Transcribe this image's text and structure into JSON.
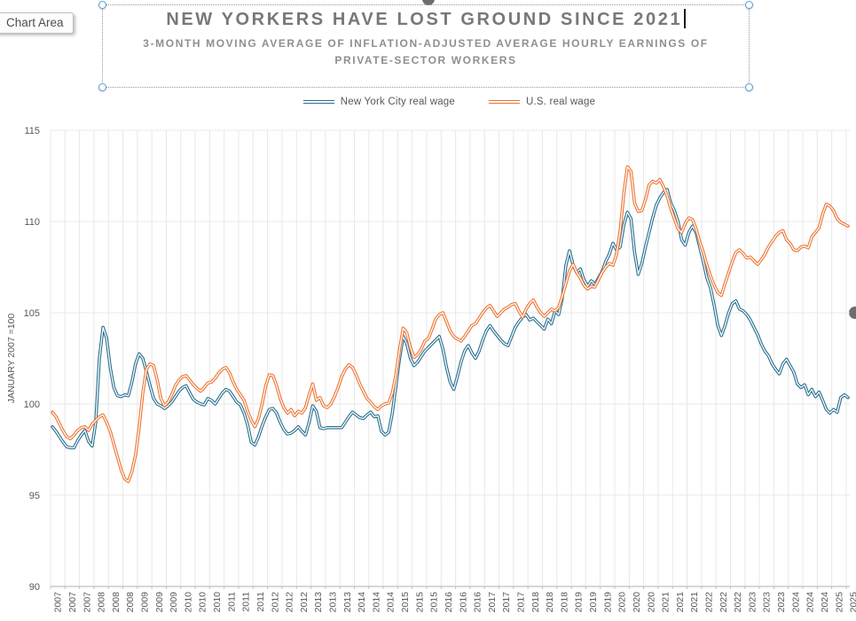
{
  "tooltip": {
    "label": "Chart Area"
  },
  "header": {
    "title": "NEW YORKERS HAVE LOST GROUND SINCE 2021",
    "subtitle": "3-MONTH MOVING AVERAGE OF INFLATION-ADJUSTED AVERAGE HOURLY EARNINGS OF PRIVATE-SECTOR WORKERS"
  },
  "legend": {
    "items": [
      {
        "label": "New York City real wage",
        "color": "#276E8F"
      },
      {
        "label": "U.S. real wage",
        "color": "#ED7330"
      }
    ]
  },
  "y_axis": {
    "title": "JANUARY 2007 =100",
    "ticks": [
      90,
      95,
      100,
      105,
      110,
      115
    ],
    "min": 90,
    "max": 115
  },
  "x_axis": {
    "months_per_tick": 4,
    "tick_labels": [
      "2007",
      "2007",
      "2007",
      "2008",
      "2008",
      "2008",
      "2009",
      "2009",
      "2009",
      "2010",
      "2010",
      "2010",
      "2011",
      "2011",
      "2011",
      "2012",
      "2012",
      "2012",
      "2013",
      "2013",
      "2013",
      "2014",
      "2014",
      "2014",
      "2015",
      "2015",
      "2015",
      "2016",
      "2016",
      "2016",
      "2017",
      "2017",
      "2017",
      "2018",
      "2018",
      "2018",
      "2019",
      "2019",
      "2019",
      "2020",
      "2020",
      "2020",
      "2021",
      "2021",
      "2021",
      "2022",
      "2022",
      "2022",
      "2023",
      "2023",
      "2023",
      "2024",
      "2024",
      "2024",
      "2025",
      "2025"
    ]
  },
  "chart_data": {
    "type": "line",
    "title": "NEW YORKERS HAVE LOST GROUND SINCE 2021",
    "x_description": "Monthly, Jan 2007 - May 2025 (index 0-220)",
    "n_points": 221,
    "ylim": [
      90,
      115
    ],
    "grid": true,
    "legend_position": "top-center",
    "series": [
      {
        "name": "New York City real wage",
        "color": "#276E8F",
        "values": [
          98.75,
          98.5,
          98.2,
          97.9,
          97.65,
          97.6,
          97.6,
          98.0,
          98.3,
          98.55,
          97.95,
          97.7,
          99.0,
          102.5,
          104.2,
          103.6,
          102.0,
          100.9,
          100.45,
          100.4,
          100.5,
          100.45,
          101.2,
          102.2,
          102.75,
          102.5,
          101.8,
          101.0,
          100.3,
          100.0,
          99.9,
          99.75,
          99.9,
          100.1,
          100.4,
          100.7,
          100.9,
          101.0,
          100.6,
          100.25,
          100.1,
          100.0,
          99.95,
          100.3,
          100.2,
          100.0,
          100.3,
          100.6,
          100.8,
          100.7,
          100.4,
          100.1,
          99.95,
          99.5,
          98.85,
          97.9,
          97.75,
          98.2,
          98.8,
          99.3,
          99.7,
          99.75,
          99.5,
          99.0,
          98.6,
          98.35,
          98.4,
          98.55,
          98.75,
          98.5,
          98.3,
          99.0,
          99.9,
          99.6,
          98.7,
          98.65,
          98.7,
          98.7,
          98.7,
          98.7,
          98.7,
          99.0,
          99.3,
          99.55,
          99.4,
          99.25,
          99.2,
          99.4,
          99.55,
          99.3,
          99.35,
          98.5,
          98.3,
          98.45,
          99.5,
          101.0,
          102.5,
          103.7,
          103.3,
          102.5,
          102.1,
          102.3,
          102.6,
          102.9,
          103.1,
          103.3,
          103.5,
          103.7,
          103.0,
          102.0,
          101.2,
          100.8,
          101.5,
          102.3,
          102.9,
          103.2,
          102.8,
          102.5,
          102.9,
          103.5,
          104.0,
          104.3,
          104.0,
          103.75,
          103.5,
          103.3,
          103.2,
          103.7,
          104.2,
          104.5,
          104.75,
          104.9,
          104.6,
          104.7,
          104.5,
          104.3,
          104.1,
          104.65,
          104.4,
          105.1,
          104.9,
          105.8,
          107.6,
          108.4,
          107.6,
          107.2,
          107.4,
          106.8,
          106.45,
          106.75,
          106.55,
          106.9,
          107.25,
          107.8,
          108.2,
          108.8,
          108.45,
          108.6,
          109.8,
          110.5,
          110.15,
          108.3,
          107.1,
          107.7,
          108.6,
          109.4,
          110.2,
          110.9,
          111.3,
          111.6,
          111.75,
          111.0,
          110.6,
          110.0,
          109.0,
          108.7,
          109.4,
          109.75,
          109.4,
          108.6,
          107.8,
          106.9,
          106.35,
          105.4,
          104.3,
          103.75,
          104.3,
          105.0,
          105.5,
          105.65,
          105.2,
          105.1,
          104.9,
          104.6,
          104.2,
          103.8,
          103.3,
          102.9,
          102.65,
          102.2,
          101.9,
          101.65,
          102.2,
          102.45,
          102.1,
          101.75,
          101.1,
          100.9,
          101.05,
          100.5,
          100.8,
          100.4,
          100.65,
          100.2,
          99.7,
          99.5,
          99.7,
          99.55,
          100.35,
          100.5,
          100.35
        ]
      },
      {
        "name": "U.S. real wage",
        "color": "#ED7330",
        "values": [
          99.55,
          99.3,
          98.9,
          98.5,
          98.2,
          98.1,
          98.3,
          98.55,
          98.7,
          98.75,
          98.55,
          98.9,
          99.1,
          99.3,
          99.4,
          99.0,
          98.5,
          97.8,
          97.1,
          96.4,
          95.9,
          95.75,
          96.3,
          97.2,
          98.7,
          100.6,
          101.9,
          102.2,
          102.1,
          101.3,
          100.3,
          99.9,
          100.1,
          100.5,
          101.0,
          101.3,
          101.5,
          101.55,
          101.3,
          101.05,
          100.85,
          100.7,
          100.9,
          101.15,
          101.2,
          101.4,
          101.7,
          101.9,
          102.0,
          101.7,
          101.2,
          100.8,
          100.5,
          100.2,
          99.6,
          99.1,
          98.75,
          99.2,
          100.0,
          101.0,
          101.6,
          101.55,
          101.0,
          100.3,
          99.8,
          99.5,
          99.7,
          99.35,
          99.6,
          99.5,
          99.8,
          100.5,
          101.1,
          100.2,
          100.35,
          99.9,
          99.8,
          100.0,
          100.4,
          100.9,
          101.5,
          101.9,
          102.15,
          102.0,
          101.6,
          101.1,
          100.7,
          100.3,
          100.1,
          99.85,
          99.7,
          99.9,
          100.0,
          100.05,
          100.6,
          101.6,
          103.0,
          104.15,
          103.9,
          103.1,
          102.55,
          102.7,
          103.0,
          103.45,
          103.6,
          104.1,
          104.65,
          104.9,
          105.0,
          104.5,
          104.0,
          103.7,
          103.55,
          103.45,
          103.7,
          104.0,
          104.3,
          104.4,
          104.7,
          105.0,
          105.25,
          105.4,
          105.1,
          104.8,
          105.0,
          105.2,
          105.3,
          105.45,
          105.5,
          105.1,
          104.75,
          105.2,
          105.5,
          105.7,
          105.3,
          105.0,
          104.8,
          105.0,
          105.2,
          105.1,
          105.3,
          105.9,
          106.6,
          107.3,
          107.65,
          107.2,
          106.9,
          106.5,
          106.3,
          106.45,
          106.4,
          106.8,
          107.2,
          107.5,
          107.7,
          107.6,
          108.2,
          109.5,
          111.5,
          113.0,
          112.75,
          111.0,
          110.55,
          110.6,
          111.2,
          112.0,
          112.2,
          112.1,
          112.3,
          111.9,
          111.4,
          110.7,
          110.15,
          109.6,
          109.4,
          109.9,
          110.2,
          110.1,
          109.6,
          108.9,
          108.3,
          107.6,
          107.0,
          106.5,
          106.1,
          105.95,
          106.6,
          107.2,
          107.8,
          108.3,
          108.45,
          108.25,
          108.0,
          108.05,
          107.85,
          107.65,
          107.9,
          108.2,
          108.6,
          108.9,
          109.2,
          109.4,
          109.5,
          109.0,
          108.8,
          108.45,
          108.4,
          108.6,
          108.65,
          108.55,
          109.15,
          109.4,
          109.65,
          110.4,
          110.95,
          110.85,
          110.6,
          110.15,
          109.95,
          109.85,
          109.75
        ]
      }
    ]
  },
  "colors": {
    "grid": "#e8e8e8",
    "axis": "#bfbfbf",
    "axis_text": "#595959",
    "title_text": "#77787b",
    "subtitle_text": "#8e8f92",
    "selection_handle": "#57a0d6",
    "object_handle": "#6d6d6d",
    "line_inner": "#ffffff"
  }
}
